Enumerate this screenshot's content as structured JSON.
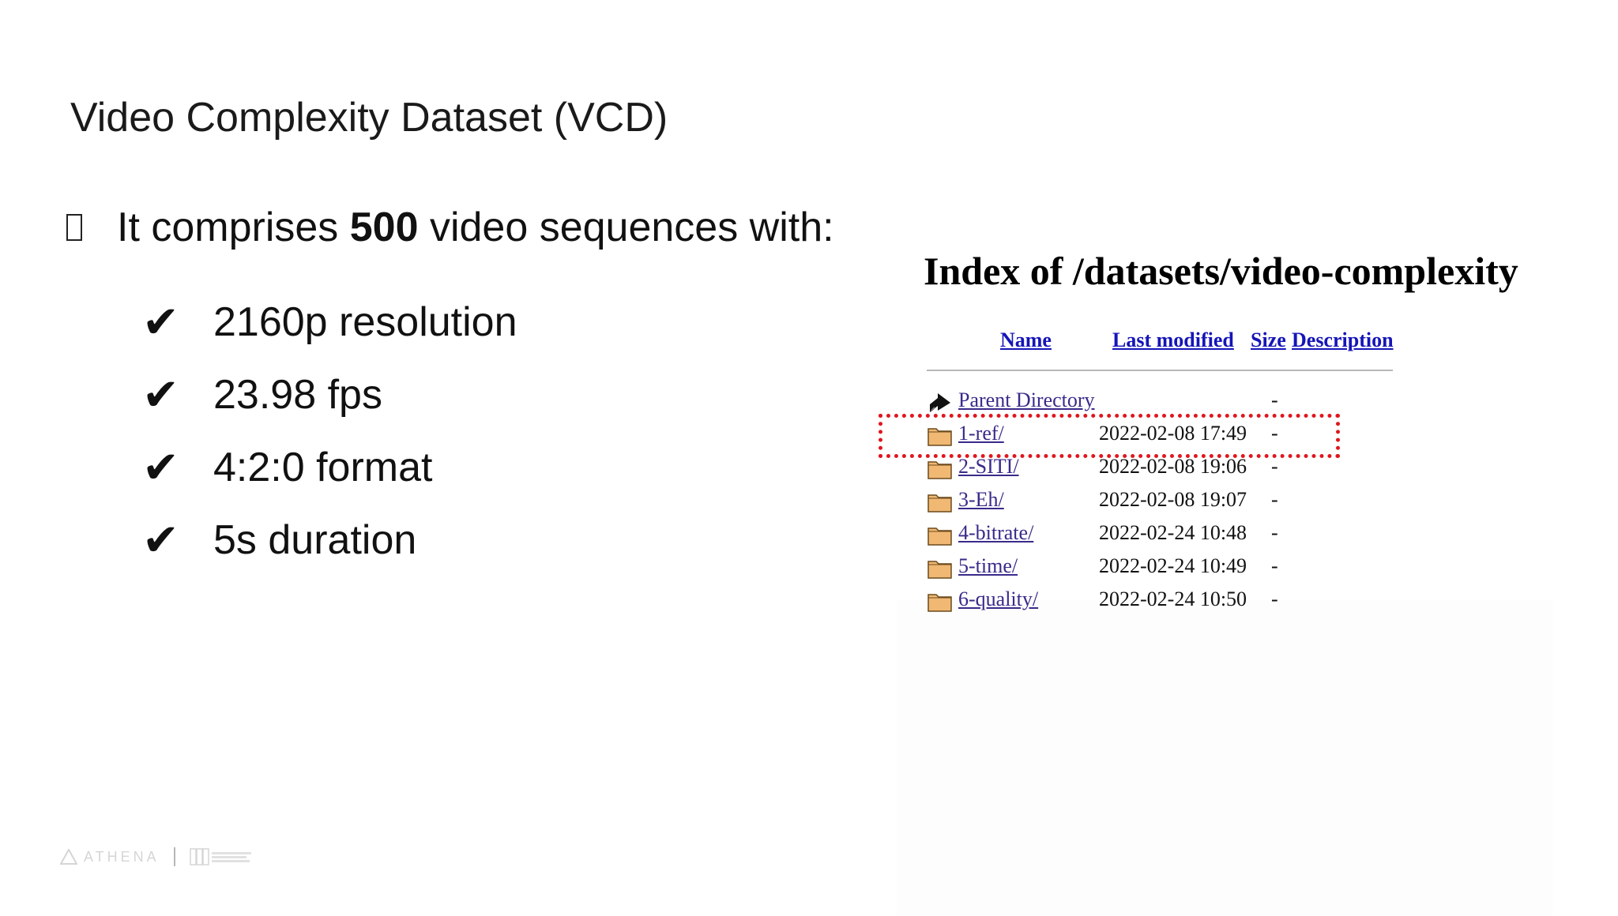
{
  "slide": {
    "title": "Video Complexity Dataset (VCD)",
    "lead": {
      "prefix": "It comprises ",
      "bold": "500",
      "suffix": " video sequences with:"
    },
    "checks": [
      {
        "mark": "✔",
        "text": "2160p resolution"
      },
      {
        "mark": "✔",
        "text": "23.98 fps"
      },
      {
        "mark": "✔",
        "text": "4:2:0 format"
      },
      {
        "mark": "✔",
        "text": "5s duration"
      }
    ]
  },
  "listing": {
    "title": "Index of /datasets/video-complexity",
    "columns": {
      "name": "Name",
      "modified": "Last modified",
      "size": "Size",
      "description": "Description"
    },
    "rows": [
      {
        "icon": "parent-directory-icon",
        "name": "Parent Directory",
        "date": "",
        "size": "-"
      },
      {
        "icon": "folder-icon",
        "name": "1-ref/",
        "date": "2022-02-08 17:49",
        "size": "-"
      },
      {
        "icon": "folder-icon",
        "name": "2-SITI/",
        "date": "2022-02-08 19:06",
        "size": "-"
      },
      {
        "icon": "folder-icon",
        "name": "3-Eh/",
        "date": "2022-02-08 19:07",
        "size": "-"
      },
      {
        "icon": "folder-icon",
        "name": "4-bitrate/",
        "date": "2022-02-24 10:48",
        "size": "-"
      },
      {
        "icon": "folder-icon",
        "name": "5-time/",
        "date": "2022-02-24 10:49",
        "size": "-"
      },
      {
        "icon": "folder-icon",
        "name": "6-quality/",
        "date": "2022-02-24 10:50",
        "size": "-"
      }
    ],
    "highlight_color": "#e0161e"
  },
  "footer": {
    "brand": "ATHENA"
  }
}
